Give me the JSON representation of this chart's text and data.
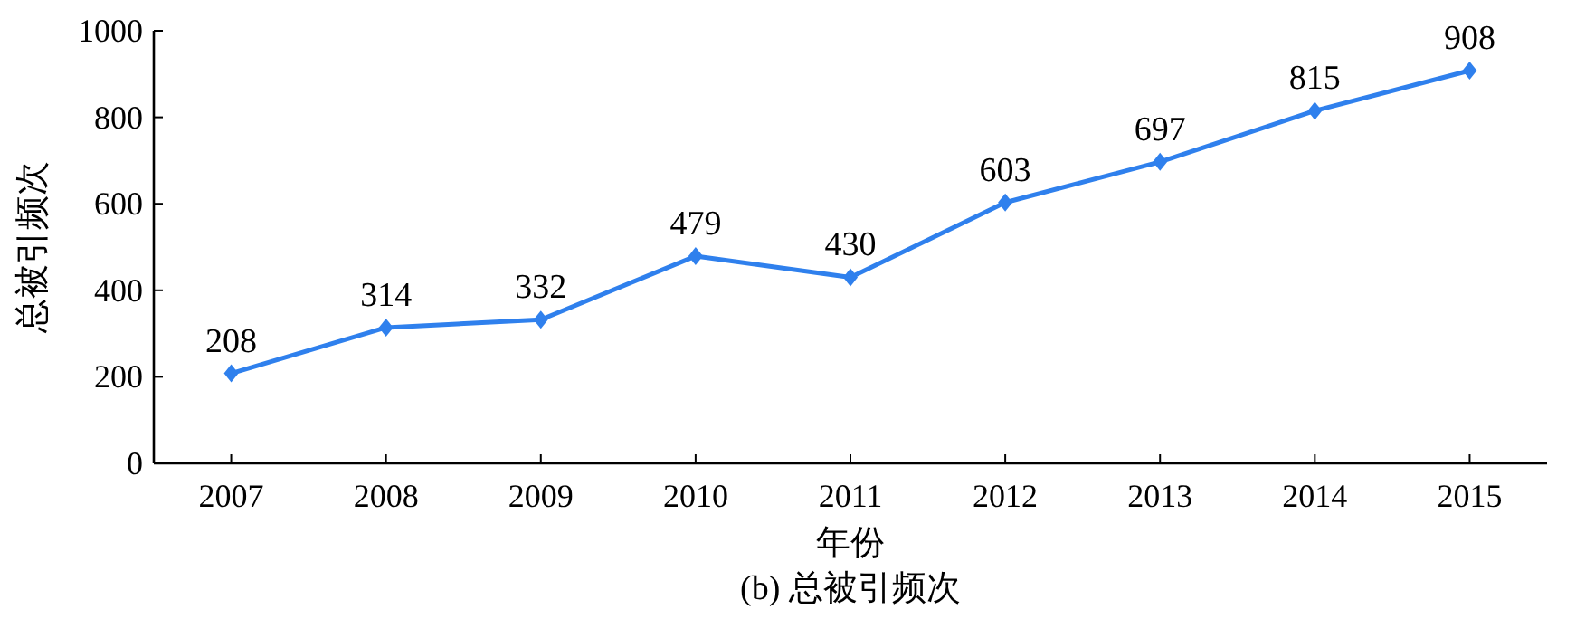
{
  "chart_data": {
    "type": "line",
    "title": "(b) 总被引频次",
    "xlabel": "年份",
    "ylabel": "总被引频次",
    "categories": [
      "2007",
      "2008",
      "2009",
      "2010",
      "2011",
      "2012",
      "2013",
      "2014",
      "2015"
    ],
    "values": [
      208,
      314,
      332,
      479,
      430,
      603,
      697,
      815,
      908
    ],
    "color": "#2f80ed",
    "marker": "diamond",
    "data_labels": true,
    "ylim": [
      0,
      1000
    ],
    "yticks": [
      0,
      200,
      400,
      600,
      800,
      1000
    ]
  }
}
